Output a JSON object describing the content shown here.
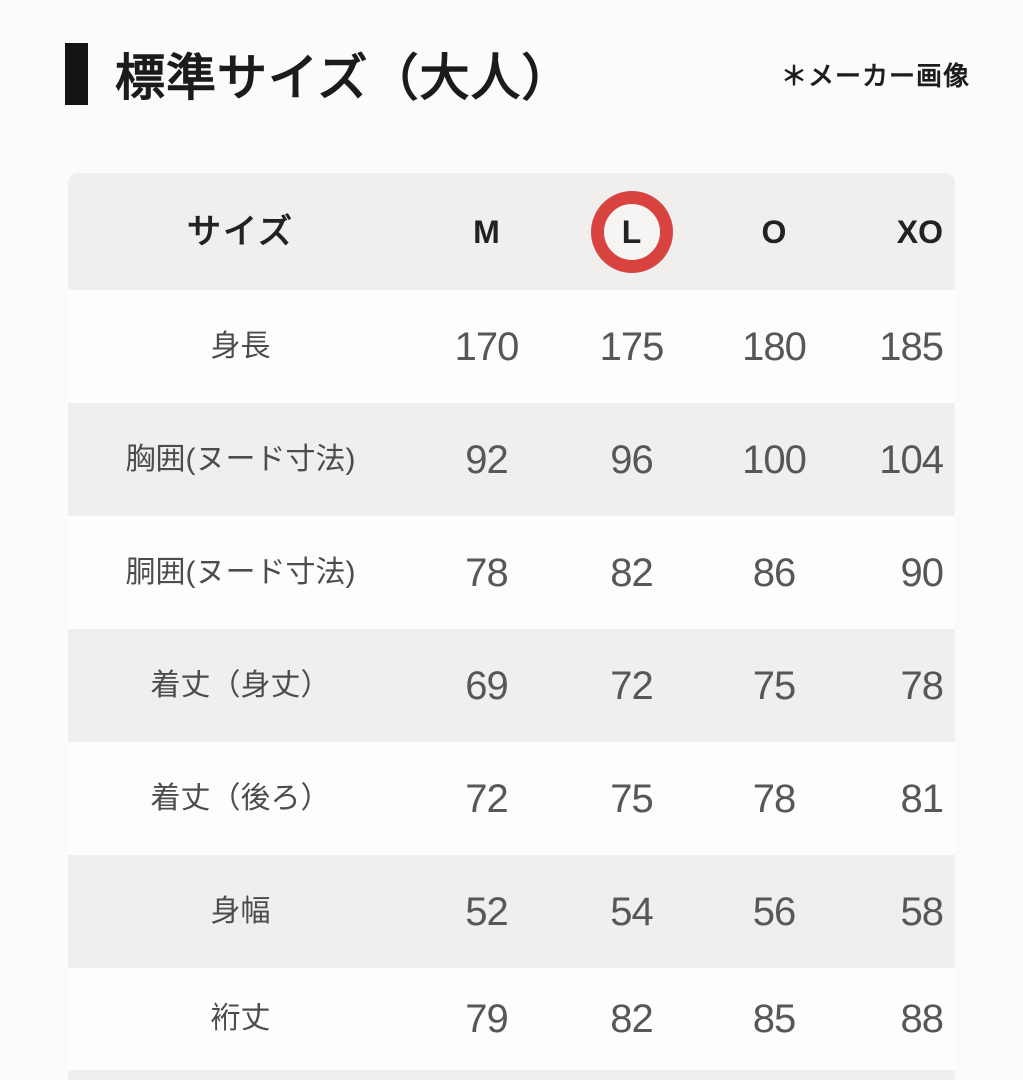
{
  "meta": {
    "note": "＊メーカー画像"
  },
  "icons": {
    "title_accent": "black-vertical-bar-icon",
    "l_highlight": "red-circle-annotation"
  },
  "colors": {
    "page_bg": "#fbfbf9",
    "row_gray": "#f0efed",
    "row_white": "#fdfdfc",
    "heading_text": "#1b1b1d",
    "cell_text": "#56575a",
    "accent_red": "#d8433f"
  },
  "chart_data": {
    "type": "table",
    "title": "標準サイズ（大人）",
    "columns": [
      "サイズ",
      "M",
      "L",
      "O",
      "XO"
    ],
    "highlight": {
      "column": "L",
      "style": "red-circle",
      "color": "#d8433f"
    },
    "rows": [
      [
        "身長",
        170,
        175,
        180,
        185
      ],
      [
        "胸囲(ヌード寸法)",
        92,
        96,
        100,
        104
      ],
      [
        "胴囲(ヌード寸法)",
        78,
        82,
        86,
        90
      ],
      [
        "着丈（身丈）",
        69,
        72,
        75,
        78
      ],
      [
        "着丈（後ろ）",
        72,
        75,
        78,
        81
      ],
      [
        "身幅",
        52,
        54,
        56,
        58
      ],
      [
        "裄丈",
        79,
        82,
        85,
        88
      ]
    ],
    "layout_hints": {
      "row_striping": "header gray, then alternating white/gray",
      "unit": "cm (implied)"
    }
  }
}
